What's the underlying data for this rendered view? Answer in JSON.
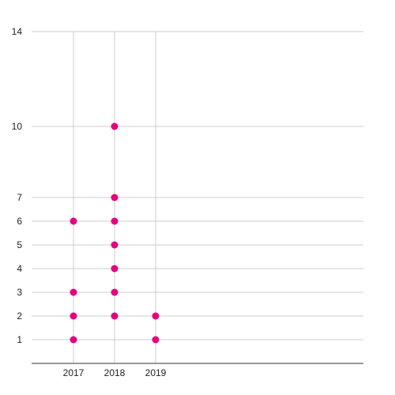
{
  "chart_data": {
    "type": "scatter",
    "title": "",
    "xlabel": "",
    "ylabel": "",
    "x_categories": [
      "2017",
      "2018",
      "2019"
    ],
    "y_ticks": [
      1,
      2,
      3,
      4,
      5,
      6,
      7,
      10,
      14
    ],
    "ylim": [
      0,
      14
    ],
    "grid": true,
    "legend": "none",
    "point_color": "#e6007e",
    "points": [
      {
        "x": "2017",
        "y": 1
      },
      {
        "x": "2017",
        "y": 2
      },
      {
        "x": "2017",
        "y": 3
      },
      {
        "x": "2017",
        "y": 6
      },
      {
        "x": "2018",
        "y": 2
      },
      {
        "x": "2018",
        "y": 3
      },
      {
        "x": "2018",
        "y": 4
      },
      {
        "x": "2018",
        "y": 5
      },
      {
        "x": "2018",
        "y": 6
      },
      {
        "x": "2018",
        "y": 7
      },
      {
        "x": "2018",
        "y": 10
      },
      {
        "x": "2019",
        "y": 1
      },
      {
        "x": "2019",
        "y": 2
      }
    ]
  }
}
